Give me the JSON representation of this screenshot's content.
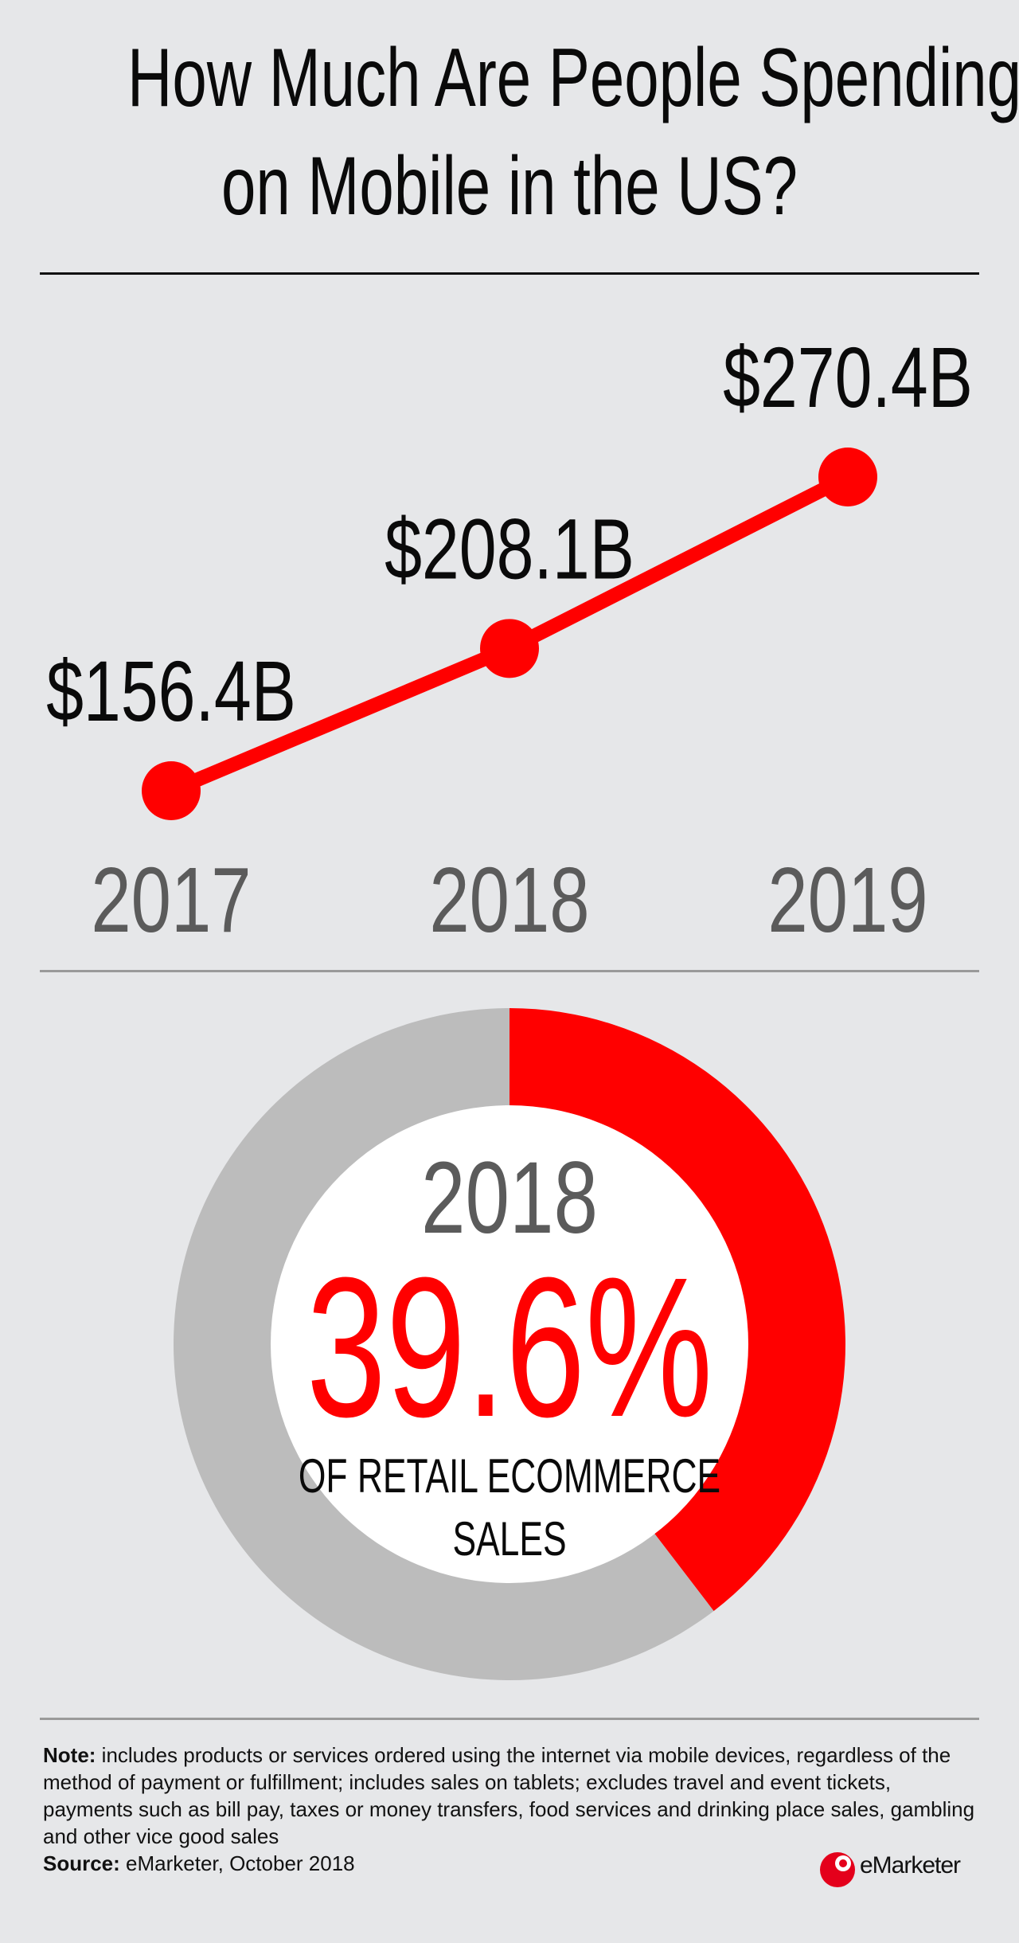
{
  "title": {
    "line1": "How Much Are People Spending",
    "line2": "on Mobile in the US?"
  },
  "chart_data": [
    {
      "type": "line",
      "categories": [
        "2017",
        "2018",
        "2019"
      ],
      "values": [
        156.4,
        208.1,
        270.4
      ],
      "data_labels": [
        "$156.4B",
        "$208.1B",
        "$270.4B"
      ],
      "color": "#ff0000",
      "label_color": "#0a0a0a",
      "tick_color": "#5b5b5b"
    },
    {
      "type": "pie",
      "year": "2018",
      "value_label": "39.6%",
      "caption_line1": "OF RETAIL ECOMMERCE",
      "caption_line2": "SALES",
      "slices": [
        {
          "value": 39.6,
          "color": "#ff0000"
        },
        {
          "value": 60.4,
          "color": "#bcbcbc"
        }
      ]
    }
  ],
  "note": {
    "label": "Note:",
    "text": " includes products or services ordered using the internet via mobile devices, regardless of the method of payment or fulfillment; includes sales on tablets; excludes travel and event tickets, payments such as bill pay, taxes or money transfers, food services and drinking place sales, gambling and other vice good sales"
  },
  "source": {
    "label": "Source:",
    "text": " eMarketer, October 2018"
  },
  "logo": {
    "text": "eMarketer",
    "icon": "emarketer-logo-icon",
    "color": "#e4001b"
  }
}
